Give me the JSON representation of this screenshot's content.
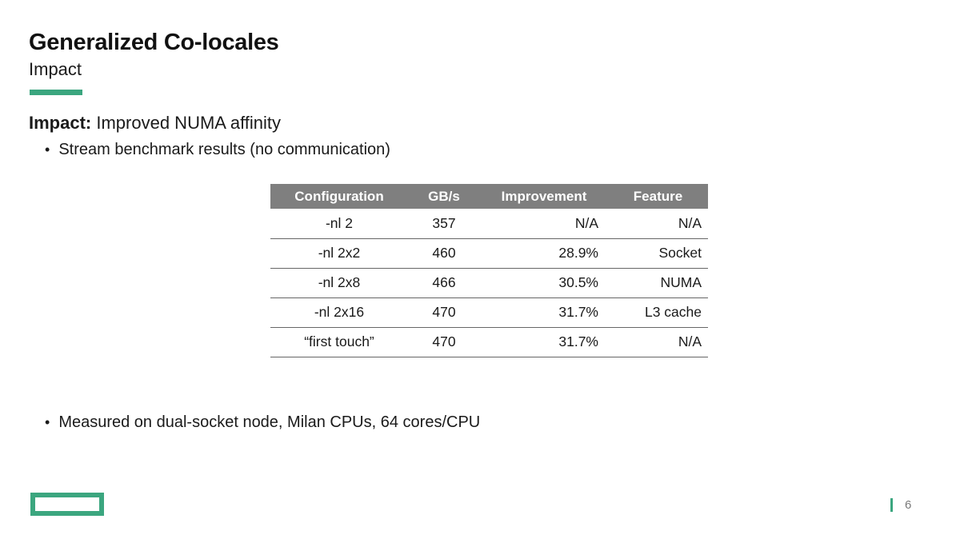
{
  "slide": {
    "title": "Generalized Co-locales",
    "subtitle": "Impact",
    "impact_label": "Impact:",
    "impact_text": " Improved NUMA affinity",
    "bullet_glyph": "•",
    "bullets": [
      "Stream benchmark results (no communication)",
      "Measured on dual-socket node, Milan CPUs, 64 cores/CPU"
    ],
    "page_number": "6"
  },
  "table": {
    "headers": [
      "Configuration",
      "GB/s",
      "Improvement",
      "Feature"
    ],
    "rows": [
      [
        "-nl 2",
        "357",
        "N/A",
        "N/A"
      ],
      [
        "-nl 2x2",
        "460",
        "28.9%",
        "Socket"
      ],
      [
        "-nl 2x8",
        "466",
        "30.5%",
        "NUMA"
      ],
      [
        "-nl 2x16",
        "470",
        "31.7%",
        "L3 cache"
      ],
      [
        "“first touch”",
        "470",
        "31.7%",
        "N/A"
      ]
    ]
  },
  "colors": {
    "accent_green": "#3BA67F",
    "header_gray": "#7F7F7F",
    "row_line": "#666666",
    "text_dark": "#1A1A1A",
    "page_num_gray": "#7A7A7A"
  }
}
